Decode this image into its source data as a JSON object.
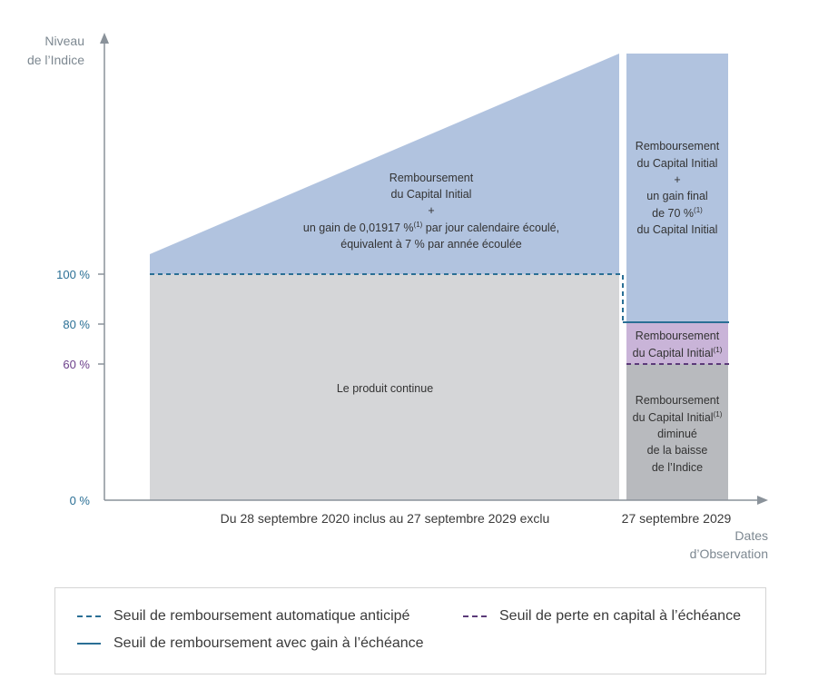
{
  "axes": {
    "y_title_line1": "Niveau",
    "y_title_line2": "de l’Indice",
    "x_title_line1": "Dates",
    "x_title_line2": "d’Observation",
    "y_ticks": [
      {
        "label": "100 %",
        "color": "#2a6f95"
      },
      {
        "label": "80 %",
        "color": "#2a6f95"
      },
      {
        "label": "60 %",
        "color": "#6b3f8a"
      },
      {
        "label": "0 %",
        "color": "#2a6f95"
      }
    ],
    "x_labels": {
      "period": "Du 28 septembre 2020 inclus au 27 septembre 2029 exclu",
      "final": "27 septembre 2029"
    }
  },
  "regions": {
    "left_upper": {
      "color": "#b1c3df",
      "line1": "Remboursement",
      "line2": "du Capital Initial",
      "line3": "+",
      "line4_pre": "un gain de 0,01917 %",
      "line4_sup": "(1)",
      "line4_post": " par jour calendaire écoulé,",
      "line5": "équivalent à 7 % par année écoulée"
    },
    "left_lower": {
      "color": "#d5d6d8",
      "line1": "Le produit continue"
    },
    "right_upper": {
      "color": "#b1c3df",
      "line1": "Remboursement",
      "line2": "du Capital Initial",
      "line3": "+",
      "line4": "un gain final",
      "line5_pre": "de 70 %",
      "line5_sup": "(1)",
      "line6": "du Capital Initial"
    },
    "right_middle": {
      "color": "#c9b4d8",
      "line1": "Remboursement",
      "line2_pre": "du Capital Initial",
      "line2_sup": "(1)"
    },
    "right_lower": {
      "color": "#b8babe",
      "line1": "Remboursement",
      "line2_pre": "du Capital Initial",
      "line2_sup": "(1)",
      "line3": "diminué",
      "line4": "de la baisse",
      "line5": "de l’Indice"
    }
  },
  "legend": {
    "autocall": "Seuil de remboursement automatique anticipé",
    "gain": "Seuil de remboursement avec gain à l’échéance",
    "capital_loss": "Seuil de perte en capital à l’échéance"
  }
}
